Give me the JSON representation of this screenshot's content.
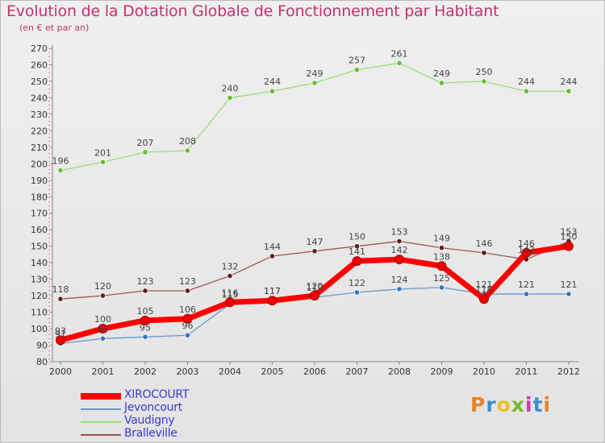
{
  "header": {
    "title": "Evolution de la Dotation Globale de Fonctionnement par Habitant",
    "subtitle": "(en € et par an)"
  },
  "logo": {
    "text": "Proxiti",
    "colors": [
      "#e8822a",
      "#3a8fd1",
      "#e8c12a",
      "#76b82a",
      "#c83ab0",
      "#3a8fd1",
      "#e8822a"
    ]
  },
  "chart_data": {
    "type": "line",
    "title": "Evolution de la Dotation Globale de Fonctionnement par Habitant",
    "subtitle": "(en € et par an)",
    "xlabel": "",
    "ylabel": "",
    "ylim": [
      80,
      270
    ],
    "ytick_step": 10,
    "grid": false,
    "legend_position": "bottom-left",
    "categories": [
      "2000",
      "2001",
      "2002",
      "2003",
      "2004",
      "2005",
      "2006",
      "2007",
      "2008",
      "2009",
      "2010",
      "2011",
      "2012"
    ],
    "series": [
      {
        "name": "Vaudigny",
        "color": "#99dd77",
        "marker": "#66bb33",
        "values": [
          196,
          201,
          207,
          208,
          240,
          244,
          249,
          257,
          261,
          249,
          250,
          244,
          244
        ]
      },
      {
        "name": "Bralleville",
        "color": "#995555",
        "marker": "#661a1a",
        "values": [
          118,
          120,
          123,
          123,
          132,
          144,
          147,
          150,
          153,
          149,
          146,
          142,
          153
        ]
      },
      {
        "name": "Jevoncourt",
        "color": "#6699cc",
        "marker": "#3377bb",
        "values": [
          91,
          94,
          95,
          96,
          115,
          117,
          119,
          122,
          124,
          125,
          121,
          121,
          121
        ]
      },
      {
        "name": "XIROCOURT",
        "color": "#ff0000",
        "marker": "#ee0000",
        "values": [
          93,
          100,
          105,
          106,
          116,
          117,
          120,
          141,
          142,
          138,
          118,
          146,
          150
        ]
      }
    ],
    "legend_order": [
      "XIROCOURT",
      "Jevoncourt",
      "Vaudigny",
      "Bralleville"
    ]
  }
}
